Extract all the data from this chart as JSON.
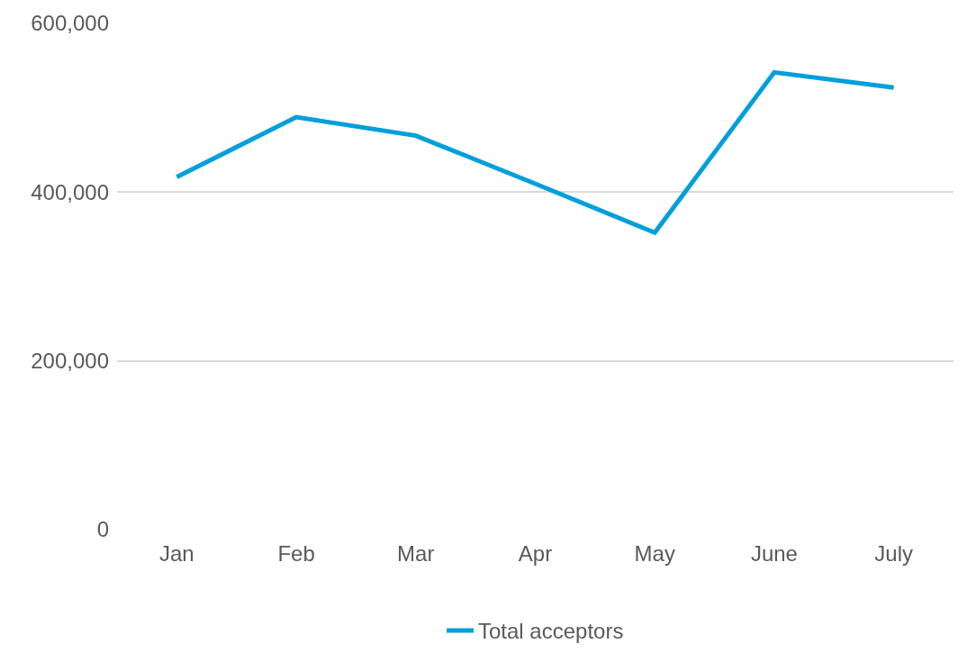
{
  "chart_data": {
    "type": "line",
    "categories": [
      "Jan",
      "Feb",
      "Mar",
      "Apr",
      "May",
      "June",
      "July"
    ],
    "series": [
      {
        "name": "Total acceptors",
        "color": "#009fdb",
        "values": [
          418000,
          489000,
          467000,
          410000,
          352000,
          542000,
          524000
        ]
      }
    ],
    "ylim": [
      0,
      600000
    ],
    "yticks": [
      {
        "value": 0,
        "label": "0"
      },
      {
        "value": 200000,
        "label": "200,000"
      },
      {
        "value": 400000,
        "label": "400,000"
      },
      {
        "value": 600000,
        "label": "600,000"
      }
    ],
    "grid": "y",
    "legend": "bottom",
    "marker": "none",
    "line_style": "solid"
  }
}
